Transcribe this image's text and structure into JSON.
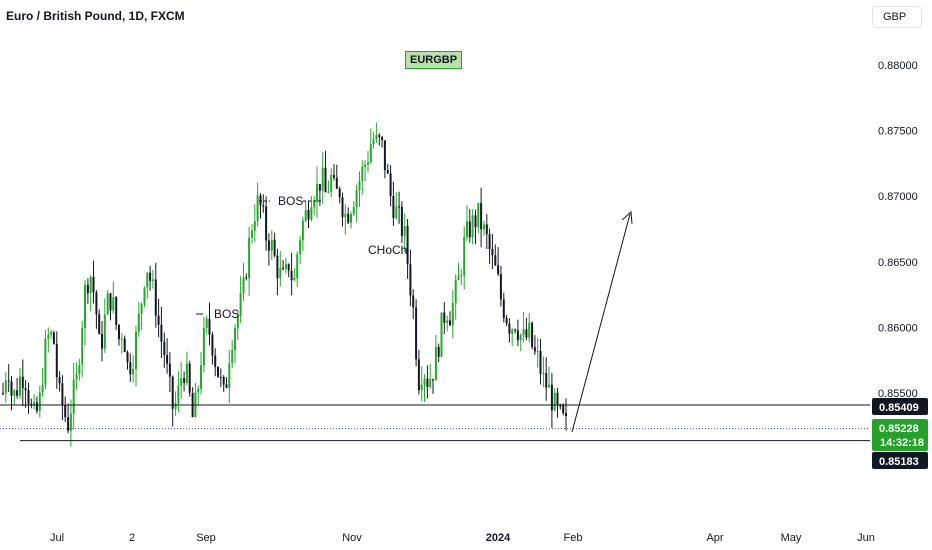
{
  "header": {
    "title": "Euro / British Pound, 1D, FXCM",
    "currency_button": "GBP"
  },
  "symbol_tag": "EURGBP",
  "annotations": {
    "bos_1": "BOS",
    "bos_2": "BOS",
    "choch": "CHoCh"
  },
  "price_labels": {
    "upper_level": "0.85409",
    "current_price": "0.85228",
    "countdown": "14:32:18",
    "lower_level": "0.85183"
  },
  "colors": {
    "up": "#26a72e",
    "down": "#131722",
    "current": "#27a12b",
    "level_line": "#131722",
    "price_line": "#3b4fc4"
  },
  "chart_data": {
    "type": "candlestick",
    "symbol": "EURGBP",
    "interval": "1D",
    "y_ticks": [
      "0.85500",
      "0.86000",
      "0.86500",
      "0.87000",
      "0.87500",
      "0.88000"
    ],
    "x_ticks": [
      "Jul",
      "2",
      "Sep",
      "Nov",
      "2024",
      "Feb",
      "Apr",
      "May",
      "Jun"
    ],
    "ylim": [
      0.848,
      0.8845
    ],
    "horizontal_levels": [
      0.85409,
      0.85183
    ],
    "current_price": 0.85228,
    "projection_arrow": {
      "from": [
        "2024-02-01",
        0.8519
      ],
      "to": [
        "2024-03-15",
        0.8688
      ]
    },
    "close_path": [
      0.855,
      0.8575,
      0.8545,
      0.8553,
      0.8565,
      0.856,
      0.8538,
      0.853,
      0.8545,
      0.858,
      0.8595,
      0.859,
      0.855,
      0.854,
      0.8525,
      0.8545,
      0.856,
      0.86,
      0.8635,
      0.864,
      0.862,
      0.858,
      0.8605,
      0.8625,
      0.8615,
      0.859,
      0.86,
      0.857,
      0.8575,
      0.8595,
      0.862,
      0.865,
      0.8635,
      0.862,
      0.8595,
      0.858,
      0.8555,
      0.8535,
      0.855,
      0.857,
      0.856,
      0.853,
      0.8545,
      0.858,
      0.86,
      0.8595,
      0.8575,
      0.856,
      0.8545,
      0.858,
      0.86,
      0.861,
      0.8625,
      0.8655,
      0.868,
      0.8695,
      0.869,
      0.867,
      0.8665,
      0.865,
      0.864,
      0.8635,
      0.865,
      0.863,
      0.8665,
      0.868,
      0.869,
      0.8705,
      0.8705,
      0.8715,
      0.87,
      0.8715,
      0.87,
      0.8705,
      0.8685,
      0.869,
      0.87,
      0.871,
      0.872,
      0.873,
      0.8745,
      0.874,
      0.874,
      0.872,
      0.87,
      0.869,
      0.868,
      0.867,
      0.864,
      0.861,
      0.856,
      0.857,
      0.856,
      0.8565,
      0.858,
      0.86,
      0.8615,
      0.861,
      0.8625,
      0.864,
      0.8665,
      0.8675,
      0.868,
      0.8685,
      0.8675,
      0.8665,
      0.865,
      0.864,
      0.862,
      0.861,
      0.86,
      0.8605,
      0.8595,
      0.859,
      0.8595,
      0.858,
      0.8575,
      0.856,
      0.8555,
      0.8545,
      0.8535,
      0.853,
      0.8525
    ]
  }
}
